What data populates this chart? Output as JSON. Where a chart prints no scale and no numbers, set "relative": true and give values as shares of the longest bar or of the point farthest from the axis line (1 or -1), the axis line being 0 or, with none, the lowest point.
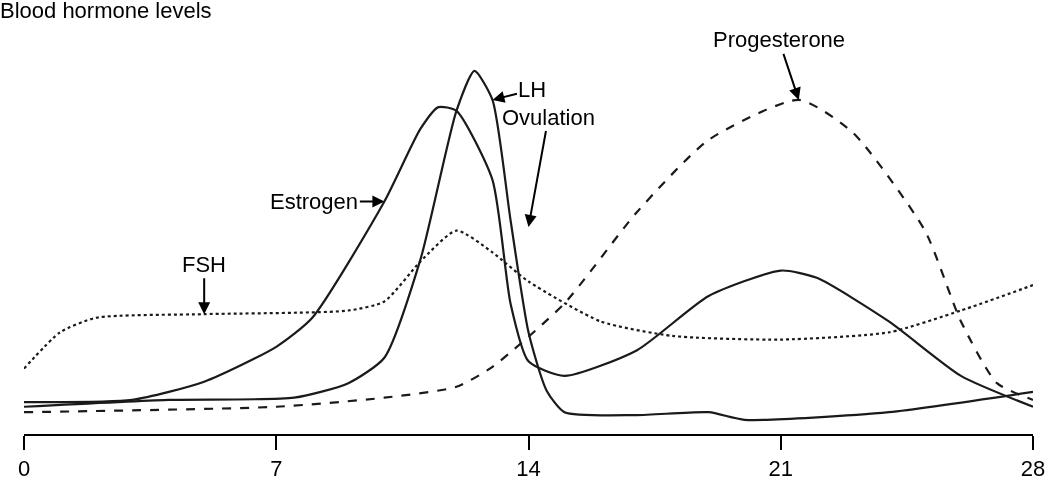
{
  "chart_data": {
    "type": "line",
    "title": "Blood hormone levels",
    "relative": true,
    "xlim": [
      0,
      28
    ],
    "xticks": [
      0,
      7,
      14,
      21,
      28
    ],
    "grid": false,
    "legend": false,
    "marker": "none",
    "tick_labels": "x",
    "annotations": [
      "Ovulation"
    ],
    "series": [
      {
        "name": "Estrogen",
        "color": "#1a1a1a",
        "line_style": "solid",
        "x": [
          0,
          3,
          5,
          7,
          8,
          10,
          11,
          11.5,
          12,
          13,
          13.5,
          14,
          15,
          17,
          19,
          21,
          22,
          24,
          26,
          28
        ],
        "values": [
          0.088,
          0.094,
          0.144,
          0.24,
          0.32,
          0.64,
          0.84,
          0.9,
          0.89,
          0.7,
          0.36,
          0.2,
          0.16,
          0.23,
          0.38,
          0.45,
          0.43,
          0.31,
          0.16,
          0.075
        ]
      },
      {
        "name": "LH",
        "color": "#1a1a1a",
        "line_style": "solid",
        "x": [
          0,
          4,
          7.5,
          9,
          10,
          11,
          12,
          12.5,
          13,
          13.5,
          14,
          14.5,
          15,
          17,
          19,
          20,
          24,
          28
        ],
        "values": [
          0.075,
          0.094,
          0.1,
          0.14,
          0.21,
          0.48,
          0.89,
          1.0,
          0.92,
          0.59,
          0.28,
          0.12,
          0.06,
          0.052,
          0.06,
          0.039,
          0.06,
          0.116
        ]
      },
      {
        "name": "Progesterone",
        "color": "#1a1a1a",
        "line_style": "dashed",
        "x": [
          0,
          7,
          10,
          12,
          13,
          15,
          17,
          19,
          21.5,
          23,
          25,
          26,
          27,
          28
        ],
        "values": [
          0.06,
          0.075,
          0.1,
          0.13,
          0.185,
          0.36,
          0.61,
          0.81,
          0.92,
          0.83,
          0.56,
          0.31,
          0.14,
          0.094
        ]
      },
      {
        "name": "FSH",
        "color": "#1a1a1a",
        "line_style": "dotted",
        "x": [
          0,
          1,
          2,
          5,
          9,
          10,
          11,
          12,
          13,
          14,
          16,
          18,
          21,
          24,
          26,
          28
        ],
        "values": [
          0.18,
          0.28,
          0.32,
          0.33,
          0.34,
          0.365,
          0.475,
          0.56,
          0.5,
          0.42,
          0.31,
          0.27,
          0.26,
          0.28,
          0.34,
          0.41
        ]
      }
    ]
  }
}
